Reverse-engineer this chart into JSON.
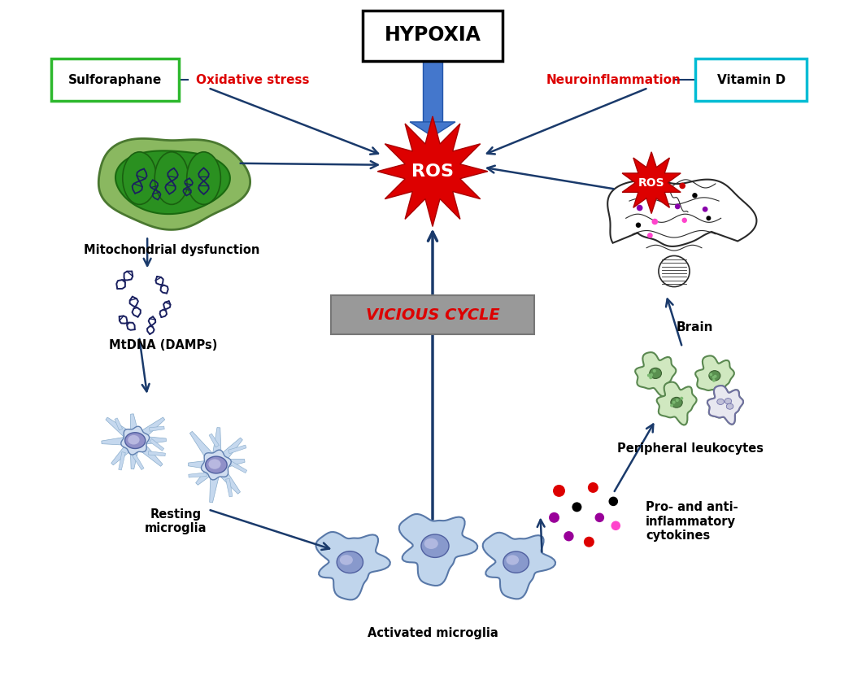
{
  "bg_color": "#ffffff",
  "hypoxia_text": "HYPOXIA",
  "ros_text": "ROS",
  "vicious_cycle_text": "VICIOUS CYCLE",
  "sulforaphane_text": "Sulforaphane",
  "vitamin_d_text": "Vitamin D",
  "oxidative_stress_text": "Oxidative stress",
  "neuroinflammation_text": "Neuroinflammation",
  "mito_text": "Mitochondrial dysfunction",
  "mtdna_text": "MtDNA (DAMPs)",
  "resting_microglia_text": "Resting\nmicroglia",
  "activated_microglia_text": "Activated microglia",
  "cytokines_text": "Pro- and anti-\ninflammatory\ncytokines",
  "leukocytes_text": "Peripheral leukocytes",
  "brain_text": "Brain",
  "arrow_color": "#1a3a6b",
  "ros_star_color": "#dd0000",
  "label_color_red": "#dd0000",
  "sulforaphane_box_color": "#2db82d",
  "vitamin_d_box_color": "#00bcd4",
  "vicious_cycle_text_color": "#dd0000",
  "mito_outer_color": "#7aaa50",
  "mito_inner_color": "#2a8a10",
  "mito_cristae_color": "#1a6a10"
}
